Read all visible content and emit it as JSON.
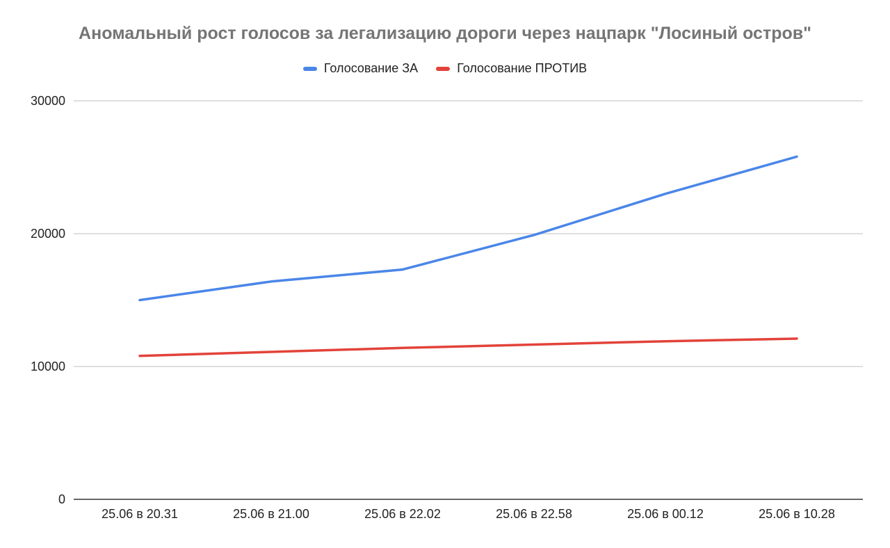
{
  "chart_data": {
    "type": "line",
    "title": "Аномальный рост голосов за легализацию дороги через нацпарк \"Лосиный остров\"",
    "xlabel": "",
    "ylabel": "",
    "categories": [
      "25.06 в 20.31",
      "25.06 в 21.00",
      "25.06 в 22.02",
      "25.06 в 22.58",
      "25.06 в 00.12",
      "25.06 в 10.28"
    ],
    "yticks": [
      "0",
      "10000",
      "20000",
      "30000"
    ],
    "ylim": [
      0,
      30000
    ],
    "grid": true,
    "legend_position": "top",
    "series": [
      {
        "name": "Голосование ЗА",
        "color": "#4a86e8",
        "values": [
          15000,
          16400,
          17300,
          19900,
          23000,
          25800
        ]
      },
      {
        "name": "Голосование ПРОТИВ",
        "color": "#e2433a",
        "values": [
          10800,
          11100,
          11400,
          11650,
          11900,
          12100
        ]
      }
    ]
  }
}
